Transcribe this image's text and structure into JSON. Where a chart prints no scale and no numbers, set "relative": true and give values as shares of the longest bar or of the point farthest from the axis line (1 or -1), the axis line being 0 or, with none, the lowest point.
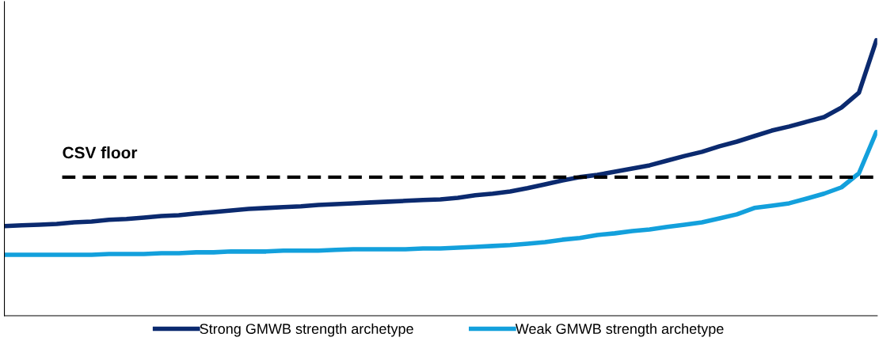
{
  "chart_data": {
    "type": "line",
    "relative": true,
    "legend": "bottom",
    "marker": "none",
    "line_style": "solid",
    "categories": [
      null,
      null,
      null,
      null,
      null,
      null,
      null,
      null,
      null,
      null,
      null,
      null,
      null,
      null,
      null,
      null,
      null,
      null,
      null,
      null,
      null,
      null,
      null,
      null,
      null,
      null,
      null,
      null,
      null,
      null,
      null,
      null,
      null,
      null,
      null,
      null,
      null,
      null,
      null,
      null,
      null,
      null,
      null,
      null,
      null,
      null,
      null,
      null,
      null,
      null,
      null
    ],
    "series": [
      {
        "name": "Strong GMWB strength archetype",
        "color": "#0b2a6f",
        "values": [
          0.325,
          0.328,
          0.33,
          0.333,
          0.339,
          0.342,
          0.348,
          0.351,
          0.356,
          0.362,
          0.365,
          0.371,
          0.376,
          0.382,
          0.388,
          0.391,
          0.394,
          0.397,
          0.402,
          0.405,
          0.408,
          0.411,
          0.414,
          0.417,
          0.42,
          0.422,
          0.428,
          0.437,
          0.443,
          0.451,
          0.463,
          0.477,
          0.491,
          0.503,
          0.511,
          0.523,
          0.534,
          0.546,
          0.563,
          0.58,
          0.595,
          0.615,
          0.632,
          0.652,
          0.672,
          0.687,
          0.704,
          0.721,
          0.756,
          0.81,
          1.0
        ]
      },
      {
        "name": "Weak GMWB strength archetype",
        "color": "#13a0dc",
        "values": [
          0.221,
          0.221,
          0.221,
          0.221,
          0.221,
          0.221,
          0.224,
          0.224,
          0.224,
          0.227,
          0.227,
          0.23,
          0.23,
          0.233,
          0.233,
          0.233,
          0.236,
          0.236,
          0.236,
          0.239,
          0.241,
          0.241,
          0.241,
          0.241,
          0.244,
          0.244,
          0.247,
          0.25,
          0.253,
          0.256,
          0.261,
          0.267,
          0.276,
          0.282,
          0.293,
          0.299,
          0.307,
          0.313,
          0.322,
          0.33,
          0.339,
          0.353,
          0.368,
          0.391,
          0.399,
          0.408,
          0.425,
          0.443,
          0.466,
          0.517,
          0.667
        ]
      }
    ],
    "ref_lines": [
      {
        "axis": "y",
        "value": 0.503,
        "label": "CSV floor",
        "color": "#000000",
        "line_style": "dashed"
      }
    ]
  }
}
